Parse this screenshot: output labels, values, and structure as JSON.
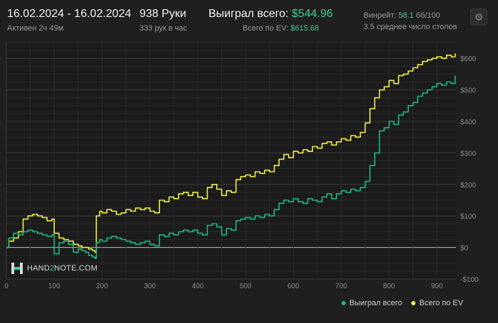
{
  "header": {
    "date_range": "16.02.2024 - 16.02.2024",
    "active": "Активен 2ч 49м",
    "hands": "938 Руки",
    "hands_per_hour": "333 рук в час",
    "won_label": "Выиграл всего:",
    "won_value": "$544.96",
    "ev_label": "Всего по EV:",
    "ev_value": "$615.68",
    "winrate_label": "Винрейт:",
    "winrate_value": "58.1",
    "winrate_unit": "бб/100",
    "avg_tables": "3.5 среднее число столов"
  },
  "logo": {
    "part1": "HAND",
    "part2": "2",
    "part3": "NOTE.COM"
  },
  "legend": {
    "won": "Выиграл всего",
    "ev": "Всего по EV"
  },
  "colors": {
    "won": "#1fb981",
    "ev": "#f2ef4a",
    "accent": "#3ecf8e",
    "background": "#1f1f1f"
  },
  "icons": {
    "settings": "gear-icon"
  },
  "chart_data": {
    "type": "line",
    "xlim": [
      0,
      940
    ],
    "ylim": [
      -100,
      650
    ],
    "x_ticks": [
      0,
      100,
      200,
      300,
      400,
      500,
      600,
      700,
      800,
      900
    ],
    "y_ticks": [
      -100,
      0,
      100,
      200,
      300,
      400,
      500,
      600
    ],
    "y_tick_labels": [
      "-$100",
      "$0",
      "$100",
      "$200",
      "$300",
      "$400",
      "$500",
      "$600"
    ],
    "grid": true,
    "legend_position": "bottom-right",
    "series": [
      {
        "name": "Выиграл всего",
        "color": "#1fb981",
        "points": [
          [
            0,
            0
          ],
          [
            5,
            30
          ],
          [
            15,
            45
          ],
          [
            25,
            40
          ],
          [
            35,
            50
          ],
          [
            45,
            55
          ],
          [
            55,
            50
          ],
          [
            65,
            45
          ],
          [
            75,
            40
          ],
          [
            85,
            35
          ],
          [
            95,
            40
          ],
          [
            100,
            -20
          ],
          [
            110,
            15
          ],
          [
            120,
            20
          ],
          [
            130,
            10
          ],
          [
            140,
            -15
          ],
          [
            150,
            -5
          ],
          [
            158,
            -10
          ],
          [
            165,
            -15
          ],
          [
            172,
            -25
          ],
          [
            180,
            -30
          ],
          [
            185,
            -35
          ],
          [
            188,
            15
          ],
          [
            195,
            25
          ],
          [
            200,
            20
          ],
          [
            210,
            30
          ],
          [
            220,
            35
          ],
          [
            230,
            30
          ],
          [
            240,
            25
          ],
          [
            250,
            20
          ],
          [
            260,
            15
          ],
          [
            270,
            10
          ],
          [
            280,
            15
          ],
          [
            290,
            20
          ],
          [
            300,
            10
          ],
          [
            310,
            5
          ],
          [
            320,
            40
          ],
          [
            330,
            35
          ],
          [
            340,
            45
          ],
          [
            350,
            40
          ],
          [
            360,
            50
          ],
          [
            370,
            55
          ],
          [
            380,
            50
          ],
          [
            390,
            55
          ],
          [
            400,
            45
          ],
          [
            410,
            40
          ],
          [
            420,
            70
          ],
          [
            430,
            75
          ],
          [
            440,
            65
          ],
          [
            450,
            40
          ],
          [
            460,
            60
          ],
          [
            470,
            55
          ],
          [
            480,
            85
          ],
          [
            490,
            90
          ],
          [
            500,
            95
          ],
          [
            510,
            90
          ],
          [
            520,
            100
          ],
          [
            530,
            95
          ],
          [
            540,
            105
          ],
          [
            550,
            100
          ],
          [
            560,
            120
          ],
          [
            570,
            140
          ],
          [
            580,
            150
          ],
          [
            590,
            145
          ],
          [
            600,
            155
          ],
          [
            610,
            145
          ],
          [
            620,
            140
          ],
          [
            630,
            155
          ],
          [
            640,
            150
          ],
          [
            650,
            145
          ],
          [
            660,
            160
          ],
          [
            670,
            170
          ],
          [
            680,
            155
          ],
          [
            690,
            170
          ],
          [
            700,
            180
          ],
          [
            710,
            175
          ],
          [
            720,
            185
          ],
          [
            730,
            180
          ],
          [
            740,
            190
          ],
          [
            750,
            210
          ],
          [
            760,
            260
          ],
          [
            770,
            300
          ],
          [
            780,
            370
          ],
          [
            790,
            380
          ],
          [
            800,
            400
          ],
          [
            810,
            390
          ],
          [
            820,
            420
          ],
          [
            830,
            430
          ],
          [
            840,
            450
          ],
          [
            850,
            460
          ],
          [
            860,
            480
          ],
          [
            870,
            490
          ],
          [
            880,
            500
          ],
          [
            890,
            510
          ],
          [
            900,
            520
          ],
          [
            910,
            515
          ],
          [
            920,
            525
          ],
          [
            930,
            520
          ],
          [
            938,
            545
          ]
        ]
      },
      {
        "name": "Всего по EV",
        "color": "#f2ef4a",
        "points": [
          [
            0,
            0
          ],
          [
            5,
            20
          ],
          [
            15,
            30
          ],
          [
            25,
            50
          ],
          [
            35,
            90
          ],
          [
            45,
            100
          ],
          [
            55,
            105
          ],
          [
            65,
            100
          ],
          [
            75,
            95
          ],
          [
            85,
            85
          ],
          [
            95,
            90
          ],
          [
            100,
            45
          ],
          [
            110,
            30
          ],
          [
            120,
            25
          ],
          [
            130,
            20
          ],
          [
            140,
            10
          ],
          [
            150,
            5
          ],
          [
            158,
            0
          ],
          [
            165,
            0
          ],
          [
            172,
            -5
          ],
          [
            180,
            -10
          ],
          [
            185,
            -15
          ],
          [
            188,
            100
          ],
          [
            195,
            115
          ],
          [
            200,
            110
          ],
          [
            210,
            120
          ],
          [
            220,
            115
          ],
          [
            230,
            105
          ],
          [
            240,
            110
          ],
          [
            250,
            120
          ],
          [
            260,
            115
          ],
          [
            270,
            125
          ],
          [
            280,
            120
          ],
          [
            290,
            125
          ],
          [
            300,
            115
          ],
          [
            310,
            110
          ],
          [
            320,
            150
          ],
          [
            330,
            145
          ],
          [
            340,
            160
          ],
          [
            350,
            155
          ],
          [
            360,
            170
          ],
          [
            370,
            175
          ],
          [
            380,
            165
          ],
          [
            390,
            175
          ],
          [
            400,
            160
          ],
          [
            410,
            155
          ],
          [
            420,
            190
          ],
          [
            430,
            200
          ],
          [
            440,
            185
          ],
          [
            450,
            165
          ],
          [
            460,
            180
          ],
          [
            470,
            175
          ],
          [
            480,
            215
          ],
          [
            490,
            225
          ],
          [
            500,
            230
          ],
          [
            510,
            225
          ],
          [
            520,
            240
          ],
          [
            530,
            235
          ],
          [
            540,
            245
          ],
          [
            550,
            240
          ],
          [
            560,
            260
          ],
          [
            570,
            280
          ],
          [
            580,
            295
          ],
          [
            590,
            285
          ],
          [
            600,
            305
          ],
          [
            610,
            300
          ],
          [
            620,
            310
          ],
          [
            630,
            305
          ],
          [
            640,
            320
          ],
          [
            650,
            315
          ],
          [
            660,
            330
          ],
          [
            670,
            335
          ],
          [
            680,
            325
          ],
          [
            690,
            335
          ],
          [
            700,
            345
          ],
          [
            710,
            340
          ],
          [
            720,
            355
          ],
          [
            730,
            350
          ],
          [
            740,
            365
          ],
          [
            750,
            395
          ],
          [
            760,
            440
          ],
          [
            770,
            475
          ],
          [
            780,
            500
          ],
          [
            790,
            510
          ],
          [
            800,
            530
          ],
          [
            810,
            520
          ],
          [
            820,
            545
          ],
          [
            830,
            550
          ],
          [
            840,
            560
          ],
          [
            850,
            570
          ],
          [
            860,
            580
          ],
          [
            870,
            590
          ],
          [
            880,
            595
          ],
          [
            890,
            600
          ],
          [
            900,
            605
          ],
          [
            910,
            600
          ],
          [
            920,
            610
          ],
          [
            930,
            605
          ],
          [
            938,
            616
          ]
        ]
      }
    ]
  }
}
